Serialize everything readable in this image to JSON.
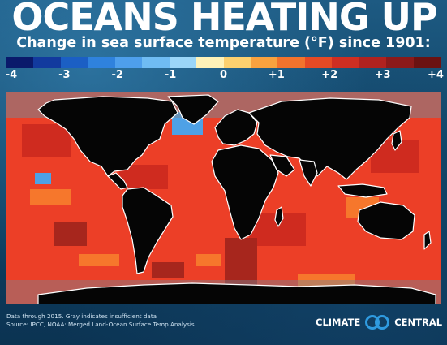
{
  "title": "OCEANS HEATING UP",
  "subtitle": "Change in sea surface temperature (°F) since 1901:",
  "legend": {
    "colors": [
      "#0a1a6b",
      "#123a9e",
      "#1b5fc4",
      "#2f82dd",
      "#4e9fec",
      "#6fbcf3",
      "#9bd6f8",
      "#fff2b8",
      "#fcd06f",
      "#f9a23f",
      "#f2732d",
      "#e54a25",
      "#cf2e22",
      "#b0221f",
      "#8c1a1a",
      "#6b1212"
    ],
    "ticks": [
      "-4",
      "-3",
      "-2",
      "-1",
      "0",
      "+1",
      "+2",
      "+3",
      "+4"
    ]
  },
  "footer": {
    "note": "Data through 2015. Gray indicates insufficient data",
    "source": "Source: IPCC, NOAA: Merged Land-Ocean Surface Temp Analysis"
  },
  "brand": {
    "word1": "CLIMATE",
    "word2": "CENTRAL"
  },
  "map_colors": {
    "ocean_base": "#ec3f27",
    "warm": "#cf2b1f",
    "hot": "#a7261d",
    "mild": "#f6772c",
    "cool": "#4ea1e6",
    "land": "#050505",
    "border": "#ffffff",
    "gray": "#7a8693"
  }
}
